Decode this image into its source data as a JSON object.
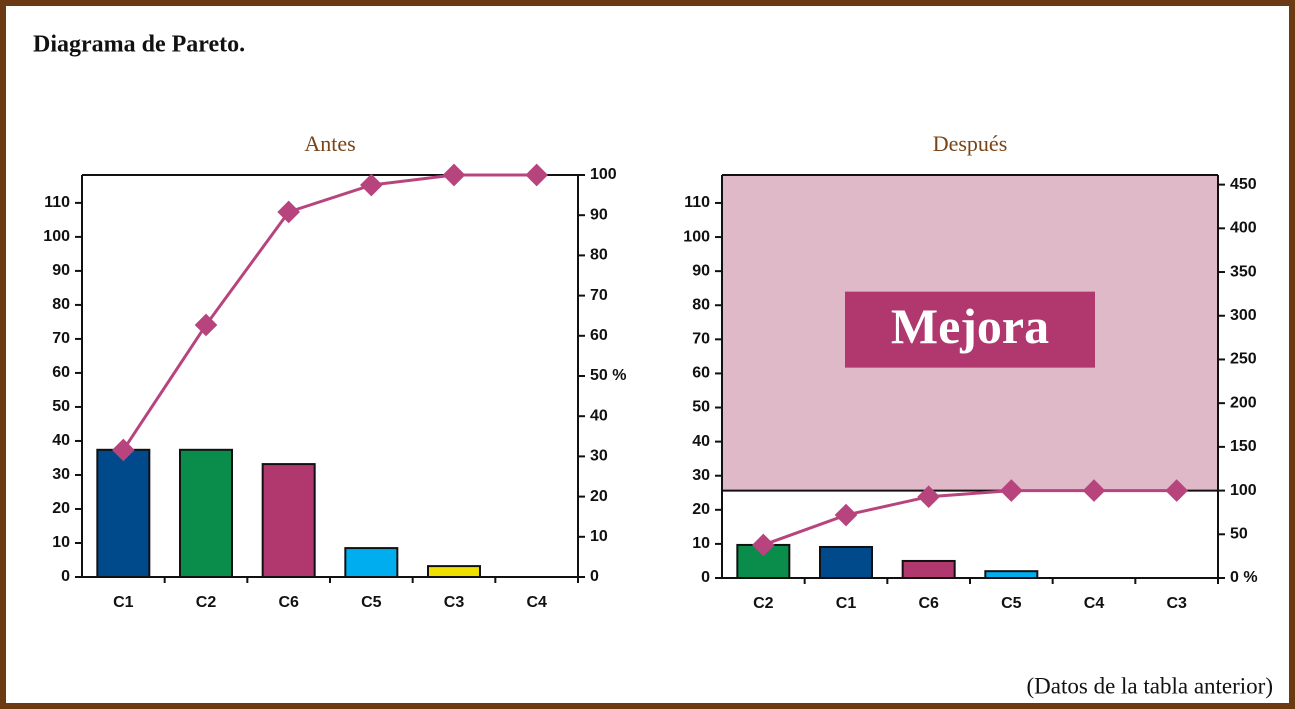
{
  "header": {
    "title": "Diagrama de Pareto."
  },
  "footnote": "(Datos de la tabla anterior)",
  "chart_data": [
    {
      "type": "pareto",
      "title": "Antes",
      "categories": [
        "C1",
        "C2",
        "C6",
        "C5",
        "C3",
        "C4"
      ],
      "values": [
        37.4,
        37.4,
        33.2,
        8.5,
        3.2,
        0
      ],
      "bar_colors": [
        "#004a8c",
        "#0a8c4a",
        "#b0386e",
        "#00aeef",
        "#f0e000",
        null
      ],
      "line_values": [
        31.6,
        62.7,
        90.8,
        97.5,
        100,
        100
      ],
      "line_color": "#b8447e",
      "ylim": [
        0,
        118.2
      ],
      "yticks": [
        0,
        10,
        20,
        30,
        40,
        50,
        60,
        70,
        80,
        90,
        100,
        110
      ],
      "y2lim": [
        0,
        100
      ],
      "y2ticks": [
        0,
        10,
        20,
        30,
        40,
        {
          "value": 50,
          "label": "50 %"
        },
        60,
        70,
        80,
        90,
        100
      ]
    },
    {
      "type": "pareto",
      "title": "Después",
      "categories": [
        "C2",
        "C1",
        "C6",
        "C5",
        "C4",
        "C3"
      ],
      "values": [
        9.7,
        9.1,
        5,
        2,
        0,
        0
      ],
      "bar_colors": [
        "#0a8c4a",
        "#004a8c",
        "#b0386e",
        "#00aeef",
        null,
        null
      ],
      "line_values": [
        37.8,
        72,
        93,
        100,
        100,
        100
      ],
      "line_color": "#b8447e",
      "ylim": [
        0,
        118.2
      ],
      "yticks": [
        0,
        10,
        20,
        30,
        40,
        50,
        60,
        70,
        80,
        90,
        100,
        110
      ],
      "y2lim": [
        0,
        461
      ],
      "y2ticks": [
        {
          "value": 0,
          "label": "0 %"
        },
        50,
        100,
        150,
        200,
        250,
        300,
        350,
        400,
        450
      ],
      "band": {
        "label": "Mejora",
        "y2from": 100,
        "color": "#e0b9c8",
        "label_color": "#b0386e"
      }
    }
  ]
}
